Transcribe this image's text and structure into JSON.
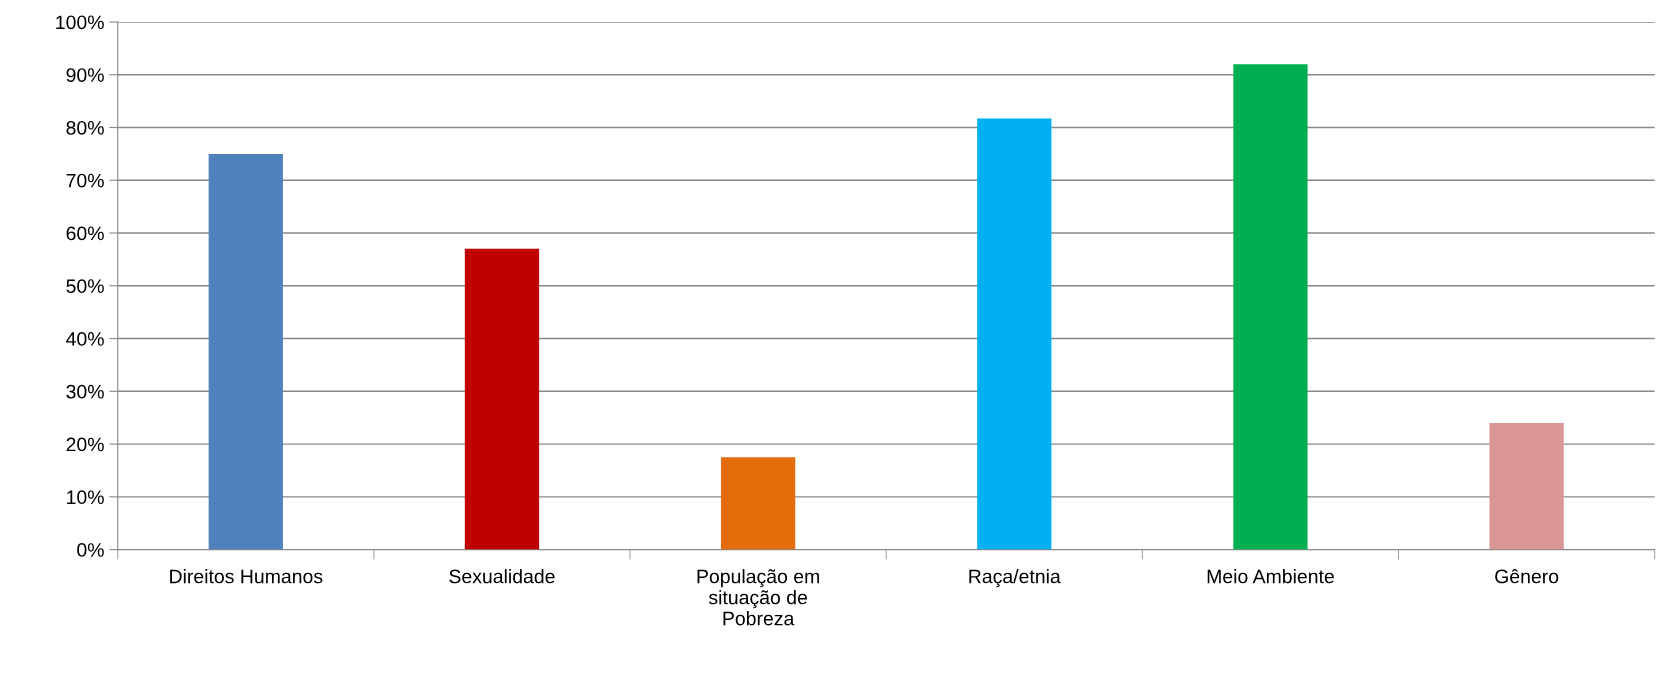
{
  "chart_data": {
    "type": "bar",
    "categories": [
      "Direitos Humanos",
      "Sexualidade",
      "População em situação de Pobreza",
      "Raça/etnia",
      "Meio Ambiente",
      "Gênero"
    ],
    "values": [
      75,
      57,
      17.5,
      81.7,
      92,
      24
    ],
    "colors": [
      "#4f81bd",
      "#c00000",
      "#e46c0a",
      "#00b0f0",
      "#00b050",
      "#d99694"
    ],
    "ylim": [
      0,
      100
    ],
    "yticks": [
      {
        "value": 0,
        "label": "0%"
      },
      {
        "value": 10,
        "label": "10%"
      },
      {
        "value": 20,
        "label": "20%"
      },
      {
        "value": 30,
        "label": "30%"
      },
      {
        "value": 40,
        "label": "40%"
      },
      {
        "value": 50,
        "label": "50%"
      },
      {
        "value": 60,
        "label": "60%"
      },
      {
        "value": 70,
        "label": "70%"
      },
      {
        "value": 80,
        "label": "80%"
      },
      {
        "value": 90,
        "label": "90%"
      },
      {
        "value": 100,
        "label": "100%"
      }
    ],
    "grid": "y",
    "legend": false
  }
}
